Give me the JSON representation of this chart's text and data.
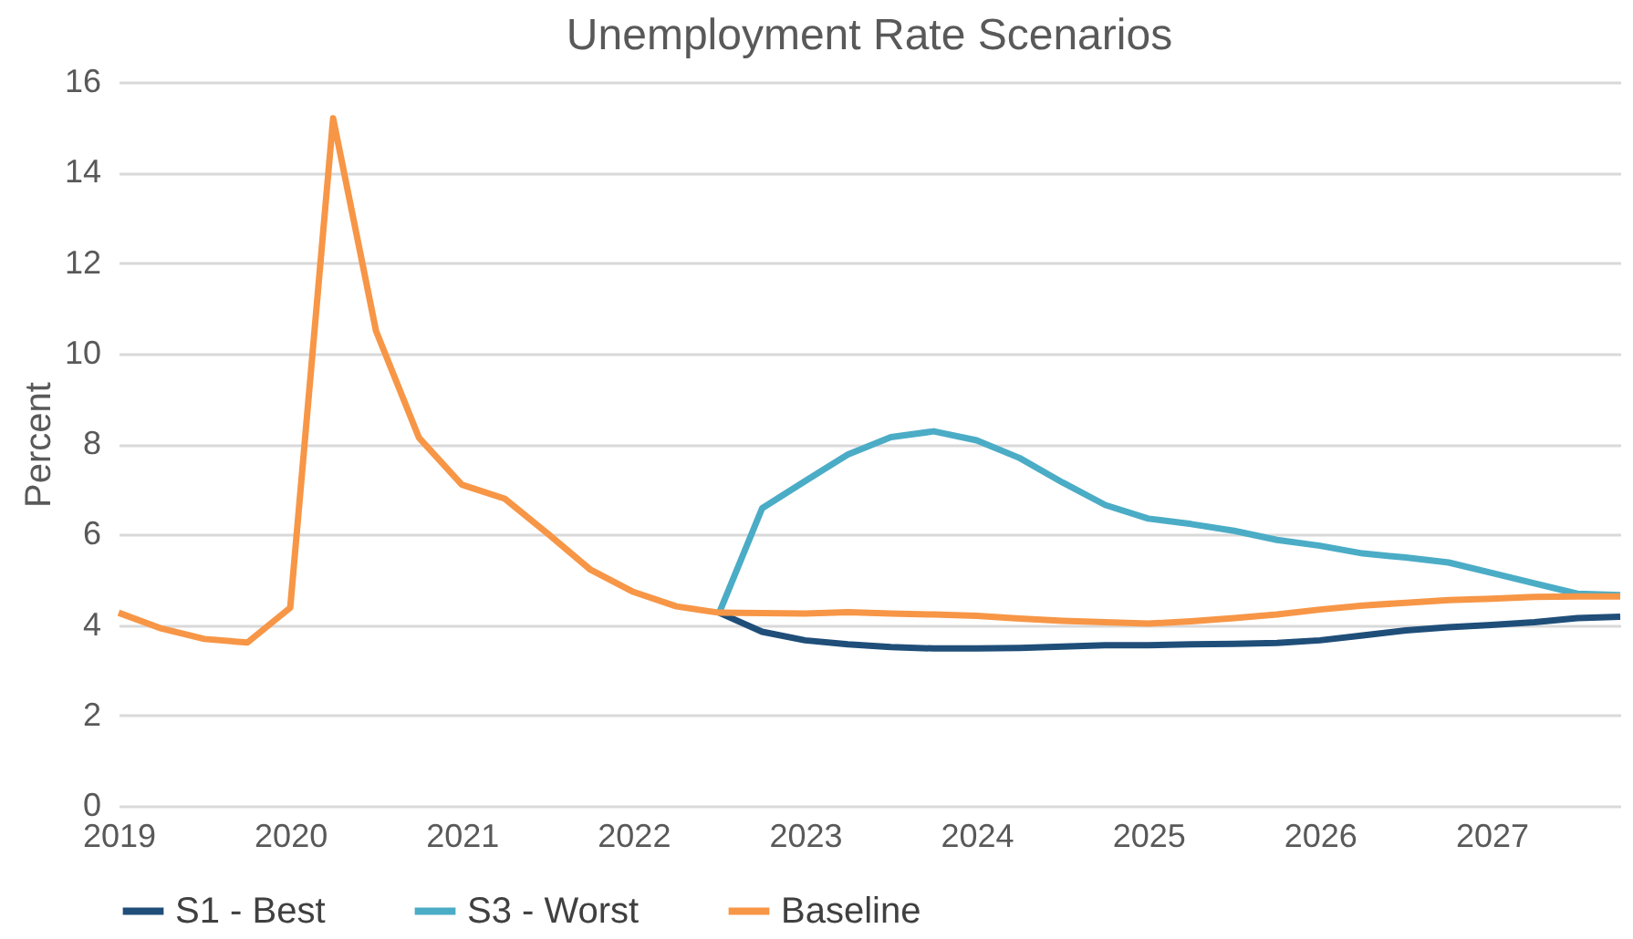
{
  "chart_data": {
    "type": "line",
    "title": "Unemployment Rate Scenarios",
    "ylabel": "Percent",
    "x": [
      2019,
      2019.25,
      2019.5,
      2019.75,
      2020,
      2020.25,
      2020.5,
      2020.75,
      2021,
      2021.25,
      2021.5,
      2021.75,
      2022,
      2022.25,
      2022.5,
      2022.75,
      2023,
      2023.25,
      2023.5,
      2023.75,
      2024,
      2024.25,
      2024.5,
      2024.75,
      2025,
      2025.25,
      2025.5,
      2025.75,
      2026,
      2026.25,
      2026.5,
      2026.75,
      2027,
      2027.25,
      2027.5,
      2027.75
    ],
    "series": [
      {
        "name": "S1 - Best",
        "color": "#1f4e79",
        "values": [
          null,
          null,
          null,
          null,
          null,
          null,
          null,
          null,
          null,
          null,
          null,
          null,
          null,
          null,
          4.27,
          3.85,
          3.66,
          3.57,
          3.51,
          3.48,
          3.48,
          3.49,
          3.52,
          3.55,
          3.55,
          3.57,
          3.58,
          3.6,
          3.66,
          3.77,
          3.88,
          3.95,
          4.0,
          4.06,
          4.15,
          4.18
        ]
      },
      {
        "name": "S3 - Worst",
        "color": "#4bacc6",
        "values": [
          null,
          null,
          null,
          null,
          null,
          null,
          null,
          null,
          null,
          null,
          null,
          null,
          null,
          null,
          4.27,
          6.58,
          7.18,
          7.77,
          8.15,
          8.28,
          8.08,
          7.69,
          7.15,
          6.65,
          6.35,
          6.23,
          6.08,
          5.88,
          5.75,
          5.58,
          5.49,
          5.38,
          5.15,
          4.92,
          4.69,
          4.66
        ]
      },
      {
        "name": "Baseline",
        "color": "#f79646",
        "values": [
          4.27,
          3.92,
          3.69,
          3.61,
          4.38,
          15.2,
          10.5,
          8.14,
          7.1,
          6.79,
          6.02,
          5.22,
          4.73,
          4.41,
          4.27,
          4.26,
          4.25,
          4.28,
          4.25,
          4.23,
          4.2,
          4.14,
          4.09,
          4.06,
          4.03,
          4.08,
          4.15,
          4.23,
          4.34,
          4.43,
          4.49,
          4.55,
          4.58,
          4.62,
          4.63,
          4.63
        ]
      }
    ],
    "xlim": [
      2019,
      2027.75
    ],
    "xticks": [
      2019,
      2020,
      2021,
      2022,
      2023,
      2024,
      2025,
      2026,
      2027
    ],
    "ylim": [
      0,
      16
    ],
    "yticks": [
      0,
      2,
      4,
      6,
      8,
      10,
      12,
      14,
      16
    ],
    "grid": "y",
    "legend": "bottom",
    "marker": "none",
    "line_style": "solid"
  }
}
